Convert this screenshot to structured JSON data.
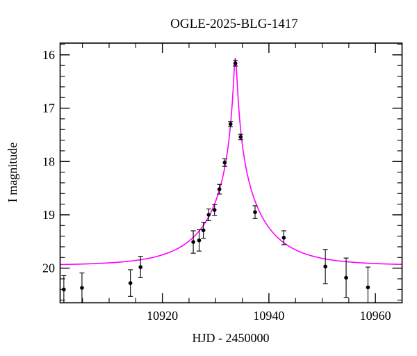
{
  "window": {
    "background": "#ffffff"
  },
  "chart_data": {
    "type": "scatter",
    "title": "OGLE-2025-BLG-1417",
    "xlabel": "HJD - 2450000",
    "ylabel": "I magnitude",
    "x_range": [
      10900.8,
      10965.0
    ],
    "y_range_mag": [
      15.78,
      20.65
    ],
    "y_axis_inverted": true,
    "grid": false,
    "x_major_ticks": [
      10920,
      10940,
      10960
    ],
    "x_minor_ticks": [
      10905,
      10910,
      10915,
      10925,
      10930,
      10935,
      10945,
      10950,
      10955
    ],
    "y_major_ticks": [
      16,
      17,
      18,
      19,
      20
    ],
    "y_minor_ticks": [
      15.8,
      16.2,
      16.4,
      16.6,
      16.8,
      17.2,
      17.4,
      17.6,
      17.8,
      18.2,
      18.4,
      18.6,
      18.8,
      19.2,
      19.4,
      19.6,
      19.8,
      20.2,
      20.4,
      20.6
    ],
    "colors": {
      "model_curve": "#ff00ff",
      "data_points": "#000000",
      "axes": "#000000",
      "background": "#ffffff"
    },
    "points": [
      {
        "t": 10901.5,
        "mag": 20.4,
        "err": 0.26
      },
      {
        "t": 10904.9,
        "mag": 20.37,
        "err": 0.28
      },
      {
        "t": 10914.0,
        "mag": 20.28,
        "err": 0.25
      },
      {
        "t": 10915.9,
        "mag": 19.98,
        "err": 0.2
      },
      {
        "t": 10925.8,
        "mag": 19.51,
        "err": 0.21
      },
      {
        "t": 10926.9,
        "mag": 19.48,
        "err": 0.2
      },
      {
        "t": 10927.7,
        "mag": 19.29,
        "err": 0.15
      },
      {
        "t": 10928.7,
        "mag": 19.0,
        "err": 0.11
      },
      {
        "t": 10929.8,
        "mag": 18.91,
        "err": 0.1
      },
      {
        "t": 10930.7,
        "mag": 18.52,
        "err": 0.09
      },
      {
        "t": 10931.7,
        "mag": 18.02,
        "err": 0.07
      },
      {
        "t": 10932.8,
        "mag": 17.3,
        "err": 0.05
      },
      {
        "t": 10933.7,
        "mag": 16.16,
        "err": 0.05
      },
      {
        "t": 10934.7,
        "mag": 17.54,
        "err": 0.05
      },
      {
        "t": 10937.4,
        "mag": 18.95,
        "err": 0.12
      },
      {
        "t": 10942.8,
        "mag": 19.43,
        "err": 0.13
      },
      {
        "t": 10950.6,
        "mag": 19.97,
        "err": 0.32
      },
      {
        "t": 10954.5,
        "mag": 20.18,
        "err": 0.37
      },
      {
        "t": 10958.6,
        "mag": 20.36,
        "err": 0.38
      }
    ],
    "model_curve": {
      "type": "paczynski_microlensing",
      "t0": 10933.7,
      "tE": 10.8,
      "u0": 0.028,
      "baseline_I": 19.95,
      "peak_I": 16.07
    }
  }
}
